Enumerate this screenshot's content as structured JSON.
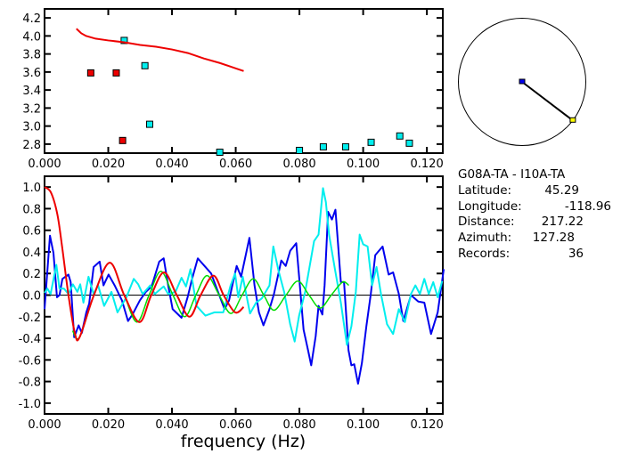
{
  "colors": {
    "blue": "#0000ee",
    "cyan": "#00eeee",
    "red": "#ee0000",
    "green": "#00dd00",
    "yellow": "#ffff00",
    "black": "#000000"
  },
  "info": {
    "pair": "G08A-TA  -  I10A-TA",
    "latitude_label": "Latitude:",
    "latitude": "45.29",
    "longitude_label": "Longitude:",
    "longitude": "-118.96",
    "distance_label": "Distance:",
    "distance": "217.22",
    "azimuth_label": "Azimuth:",
    "azimuth": "127.28",
    "records_label": "Records:",
    "records": "36"
  },
  "azimuth_deg": 127.28,
  "chart_data": [
    {
      "type": "scatter",
      "title": "",
      "xlabel": "",
      "ylabel": "",
      "xlim": [
        0,
        0.125
      ],
      "ylim": [
        2.7,
        4.3
      ],
      "xticks": [
        "0.000",
        "0.020",
        "0.040",
        "0.060",
        "0.080",
        "0.100",
        "0.120"
      ],
      "yticks": [
        "2.8",
        "3.0",
        "3.2",
        "3.4",
        "3.6",
        "3.8",
        "4.0",
        "4.2"
      ],
      "series": [
        {
          "name": "red-points",
          "color": "red",
          "points": [
            [
              0.0145,
              3.59
            ],
            [
              0.0225,
              3.59
            ],
            [
              0.0245,
              2.84
            ]
          ]
        },
        {
          "name": "cyan-points",
          "color": "cyan",
          "points": [
            [
              0.025,
              3.95
            ],
            [
              0.0315,
              3.67
            ],
            [
              0.033,
              3.02
            ],
            [
              0.055,
              2.71
            ],
            [
              0.08,
              2.73
            ],
            [
              0.0875,
              2.77
            ],
            [
              0.0945,
              2.77
            ],
            [
              0.1025,
              2.82
            ],
            [
              0.1115,
              2.89
            ],
            [
              0.1145,
              2.81
            ]
          ]
        },
        {
          "name": "red-curve",
          "color": "red",
          "line": true,
          "points": [
            [
              0.01,
              4.08
            ],
            [
              0.0115,
              4.03
            ],
            [
              0.013,
              4.0
            ],
            [
              0.016,
              3.97
            ],
            [
              0.02,
              3.95
            ],
            [
              0.025,
              3.93
            ],
            [
              0.03,
              3.9
            ],
            [
              0.035,
              3.88
            ],
            [
              0.04,
              3.85
            ],
            [
              0.045,
              3.81
            ],
            [
              0.05,
              3.75
            ],
            [
              0.055,
              3.7
            ],
            [
              0.06,
              3.64
            ],
            [
              0.0625,
              3.61
            ]
          ]
        }
      ]
    },
    {
      "type": "line",
      "title": "",
      "xlabel": "frequency (Hz)",
      "ylabel": "",
      "xlim": [
        0,
        0.125
      ],
      "ylim": [
        -1.1,
        1.1
      ],
      "xticks": [
        "0.000",
        "0.020",
        "0.040",
        "0.060",
        "0.080",
        "0.100",
        "0.120"
      ],
      "yticks": [
        "-1.0",
        "-0.8",
        "-0.6",
        "-0.4",
        "-0.2",
        "0.0",
        "0.2",
        "0.4",
        "0.6",
        "0.8",
        "1.0"
      ],
      "series": [
        {
          "name": "blue",
          "color": "blue",
          "smooth": false,
          "points": [
            [
              0,
              -0.13
            ],
            [
              0.0017,
              0.55
            ],
            [
              0.0028,
              0.39
            ],
            [
              0.0039,
              -0.02
            ],
            [
              0.0047,
              0.0
            ],
            [
              0.0056,
              0.15
            ],
            [
              0.0075,
              0.19
            ],
            [
              0.0082,
              0.12
            ],
            [
              0.0093,
              -0.39
            ],
            [
              0.0107,
              -0.28
            ],
            [
              0.0117,
              -0.35
            ],
            [
              0.0131,
              -0.16
            ],
            [
              0.014,
              -0.08
            ],
            [
              0.0154,
              0.26
            ],
            [
              0.0173,
              0.31
            ],
            [
              0.0185,
              0.09
            ],
            [
              0.0201,
              0.19
            ],
            [
              0.022,
              0.09
            ],
            [
              0.0243,
              -0.05
            ],
            [
              0.0262,
              -0.24
            ],
            [
              0.0276,
              -0.18
            ],
            [
              0.0299,
              -0.05
            ],
            [
              0.0318,
              0.03
            ],
            [
              0.0336,
              0.08
            ],
            [
              0.036,
              0.31
            ],
            [
              0.0374,
              0.34
            ],
            [
              0.0388,
              0.09
            ],
            [
              0.0402,
              -0.13
            ],
            [
              0.043,
              -0.21
            ],
            [
              0.0449,
              -0.02
            ],
            [
              0.0463,
              0.15
            ],
            [
              0.0481,
              0.34
            ],
            [
              0.0505,
              0.26
            ],
            [
              0.0523,
              0.2
            ],
            [
              0.0547,
              0.01
            ],
            [
              0.0565,
              -0.13
            ],
            [
              0.0579,
              -0.05
            ],
            [
              0.0603,
              0.27
            ],
            [
              0.0617,
              0.17
            ],
            [
              0.0643,
              0.53
            ],
            [
              0.0659,
              0.09
            ],
            [
              0.0673,
              -0.16
            ],
            [
              0.0687,
              -0.28
            ],
            [
              0.0706,
              -0.13
            ],
            [
              0.072,
              0.01
            ],
            [
              0.0743,
              0.32
            ],
            [
              0.0757,
              0.27
            ],
            [
              0.0771,
              0.41
            ],
            [
              0.079,
              0.48
            ],
            [
              0.0799,
              0.17
            ],
            [
              0.0813,
              -0.32
            ],
            [
              0.0827,
              -0.51
            ],
            [
              0.0837,
              -0.65
            ],
            [
              0.0851,
              -0.38
            ],
            [
              0.086,
              -0.1
            ],
            [
              0.0872,
              -0.18
            ],
            [
              0.0879,
              0.09
            ],
            [
              0.089,
              0.77
            ],
            [
              0.0902,
              0.7
            ],
            [
              0.0913,
              0.79
            ],
            [
              0.0921,
              0.48
            ],
            [
              0.093,
              0.12
            ],
            [
              0.094,
              0.12
            ],
            [
              0.0954,
              -0.51
            ],
            [
              0.0963,
              -0.65
            ],
            [
              0.0972,
              -0.64
            ],
            [
              0.0984,
              -0.82
            ],
            [
              0.0996,
              -0.63
            ],
            [
              0.101,
              -0.29
            ],
            [
              0.1024,
              0.01
            ],
            [
              0.1038,
              0.37
            ],
            [
              0.1061,
              0.45
            ],
            [
              0.108,
              0.19
            ],
            [
              0.1094,
              0.21
            ],
            [
              0.1112,
              0.01
            ],
            [
              0.1126,
              -0.24
            ],
            [
              0.115,
              0.0
            ],
            [
              0.1173,
              -0.06
            ],
            [
              0.1192,
              -0.07
            ],
            [
              0.1213,
              -0.36
            ],
            [
              0.1234,
              -0.16
            ],
            [
              0.1253,
              0.24
            ]
          ]
        },
        {
          "name": "cyan",
          "color": "cyan",
          "smooth": false,
          "points": [
            [
              0,
              0.02
            ],
            [
              0.0009,
              0.06
            ],
            [
              0.0019,
              0.01
            ],
            [
              0.0037,
              0.28
            ],
            [
              0.0047,
              0.06
            ],
            [
              0.0061,
              0.06
            ],
            [
              0.0075,
              0.01
            ],
            [
              0.0089,
              0.1
            ],
            [
              0.0103,
              0.03
            ],
            [
              0.0112,
              0.1
            ],
            [
              0.0122,
              -0.07
            ],
            [
              0.0138,
              0.17
            ],
            [
              0.0154,
              0.01
            ],
            [
              0.0168,
              0.09
            ],
            [
              0.0187,
              -0.1
            ],
            [
              0.021,
              0.03
            ],
            [
              0.0229,
              -0.16
            ],
            [
              0.0257,
              -0.02
            ],
            [
              0.028,
              0.15
            ],
            [
              0.0294,
              0.1
            ],
            [
              0.0308,
              0.01
            ],
            [
              0.0332,
              0.09
            ],
            [
              0.0346,
              0.01
            ],
            [
              0.0374,
              0.08
            ],
            [
              0.0388,
              0.01
            ],
            [
              0.0411,
              0.03
            ],
            [
              0.043,
              0.16
            ],
            [
              0.0444,
              0.08
            ],
            [
              0.0458,
              0.24
            ],
            [
              0.0477,
              -0.1
            ],
            [
              0.0505,
              -0.19
            ],
            [
              0.0533,
              -0.16
            ],
            [
              0.0561,
              -0.16
            ],
            [
              0.0584,
              0.09
            ],
            [
              0.0598,
              0.2
            ],
            [
              0.0608,
              -0.02
            ],
            [
              0.0622,
              0.17
            ],
            [
              0.0645,
              -0.17
            ],
            [
              0.0664,
              -0.07
            ],
            [
              0.0682,
              -0.03
            ],
            [
              0.0706,
              0.09
            ],
            [
              0.0718,
              0.45
            ],
            [
              0.0734,
              0.23
            ],
            [
              0.0752,
              0.03
            ],
            [
              0.0771,
              -0.27
            ],
            [
              0.0785,
              -0.43
            ],
            [
              0.0799,
              -0.19
            ],
            [
              0.0818,
              0.03
            ],
            [
              0.0846,
              0.5
            ],
            [
              0.086,
              0.56
            ],
            [
              0.0874,
              0.99
            ],
            [
              0.0883,
              0.86
            ],
            [
              0.0893,
              0.56
            ],
            [
              0.0912,
              0.23
            ],
            [
              0.093,
              -0.07
            ],
            [
              0.0949,
              -0.46
            ],
            [
              0.0963,
              -0.29
            ],
            [
              0.0977,
              0.03
            ],
            [
              0.0989,
              0.56
            ],
            [
              0.1,
              0.47
            ],
            [
              0.1014,
              0.45
            ],
            [
              0.1028,
              0.09
            ],
            [
              0.1042,
              0.26
            ],
            [
              0.1056,
              0.01
            ],
            [
              0.1075,
              -0.27
            ],
            [
              0.1094,
              -0.36
            ],
            [
              0.1112,
              -0.13
            ],
            [
              0.1131,
              -0.25
            ],
            [
              0.115,
              0.01
            ],
            [
              0.1164,
              0.09
            ],
            [
              0.1178,
              0.01
            ],
            [
              0.1192,
              0.15
            ],
            [
              0.1206,
              0.01
            ],
            [
              0.122,
              0.12
            ],
            [
              0.1234,
              -0.02
            ],
            [
              0.1248,
              0.13
            ]
          ]
        },
        {
          "name": "green",
          "color": "green",
          "smooth": true,
          "points": [
            [
              0.0088,
              -0.33
            ],
            [
              0.011,
              -0.39
            ],
            [
              0.0155,
              0.0
            ],
            [
              0.0205,
              0.3
            ],
            [
              0.025,
              0.0
            ],
            [
              0.029,
              -0.25
            ],
            [
              0.0328,
              0.0
            ],
            [
              0.0365,
              0.22
            ],
            [
              0.0403,
              0.0
            ],
            [
              0.044,
              -0.2
            ],
            [
              0.0475,
              0.0
            ],
            [
              0.051,
              0.18
            ],
            [
              0.0548,
              0.0
            ],
            [
              0.0585,
              -0.17
            ],
            [
              0.062,
              0.0
            ],
            [
              0.0655,
              0.15
            ],
            [
              0.0688,
              0.0
            ],
            [
              0.072,
              -0.14
            ],
            [
              0.0758,
              0.0
            ],
            [
              0.0795,
              0.13
            ],
            [
              0.083,
              0.0
            ],
            [
              0.0865,
              -0.12
            ],
            [
              0.09,
              0.0
            ],
            [
              0.0935,
              0.12
            ],
            [
              0.0955,
              0.09
            ]
          ]
        },
        {
          "name": "red",
          "color": "red",
          "smooth": true,
          "points": [
            [
              0,
              1.0
            ],
            [
              0.002,
              0.95
            ],
            [
              0.004,
              0.75
            ],
            [
              0.0055,
              0.45
            ],
            [
              0.0075,
              0.0
            ],
            [
              0.0095,
              -0.35
            ],
            [
              0.011,
              -0.39
            ],
            [
              0.0155,
              0.0
            ],
            [
              0.0205,
              0.3
            ],
            [
              0.025,
              0.0
            ],
            [
              0.0298,
              -0.25
            ],
            [
              0.0335,
              0.0
            ],
            [
              0.0375,
              0.21
            ],
            [
              0.0415,
              0.0
            ],
            [
              0.0455,
              -0.2
            ],
            [
              0.049,
              0.0
            ],
            [
              0.053,
              0.18
            ],
            [
              0.0562,
              0.0
            ],
            [
              0.0598,
              -0.16
            ],
            [
              0.0625,
              -0.11
            ]
          ]
        }
      ]
    }
  ]
}
